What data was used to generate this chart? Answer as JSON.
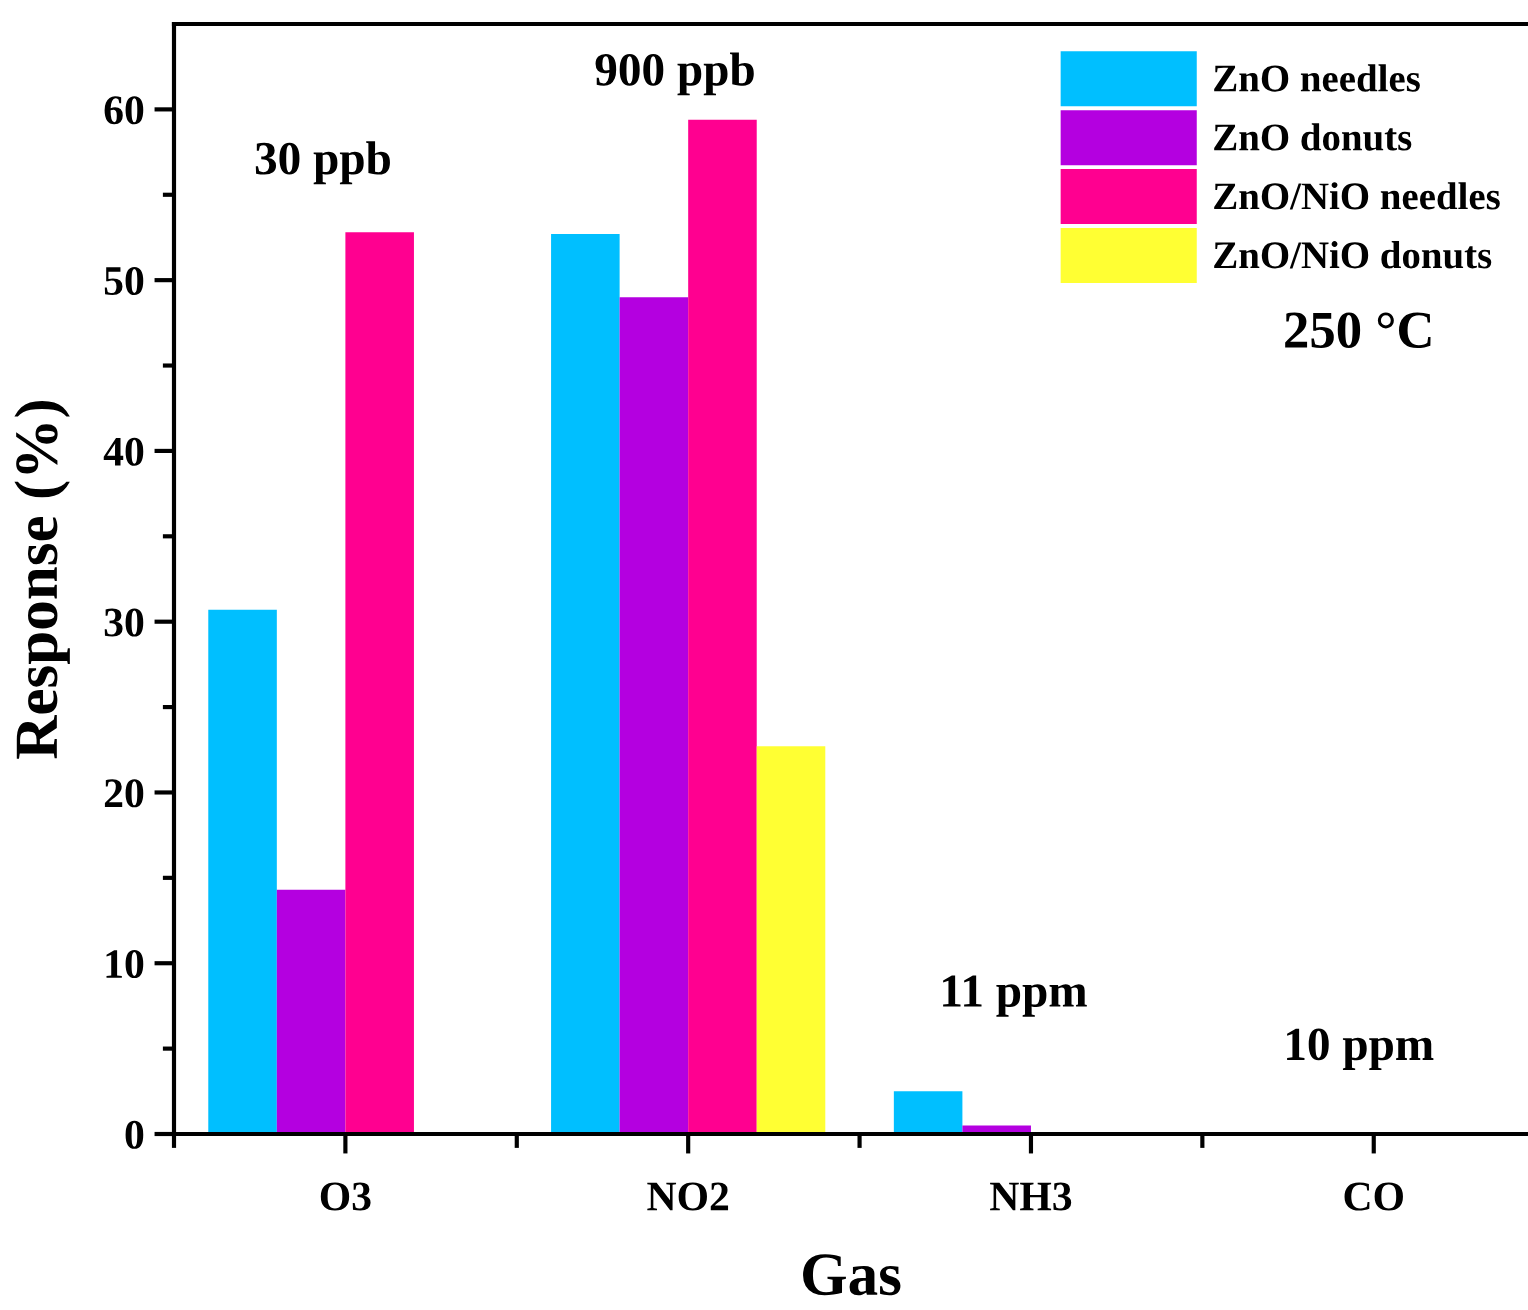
{
  "chart_data": {
    "type": "bar",
    "xlabel": "Gas",
    "ylabel": "Response (%)",
    "categories": [
      "O3",
      "NO2",
      "NH3",
      "CO"
    ],
    "series": [
      {
        "name": "ZnO needles",
        "color": "#00bfff",
        "values": [
          30.7,
          52.7,
          2.5,
          0
        ]
      },
      {
        "name": "ZnO donuts",
        "color": "#b400e0",
        "values": [
          14.3,
          49.0,
          0.5,
          0
        ]
      },
      {
        "name": "ZnO/NiO needles",
        "color": "#ff0090",
        "values": [
          52.8,
          59.4,
          0,
          0
        ]
      },
      {
        "name": "ZnO/NiO donuts",
        "color": "#ffff33",
        "values": [
          0,
          22.7,
          0,
          0
        ]
      }
    ],
    "ylim": [
      0,
      65
    ],
    "yticks": [
      0,
      {
        "value": 5,
        "label": null
      },
      10,
      {
        "value": 15,
        "label": null
      },
      20,
      {
        "value": 25,
        "label": null
      },
      30,
      {
        "value": 35,
        "label": null
      },
      40,
      {
        "value": 45,
        "label": null
      },
      50,
      {
        "value": 55,
        "label": null
      },
      60
    ],
    "annotations": [
      "30 ppb",
      "900 ppb",
      "11 ppm",
      "10 ppm",
      "250 °C"
    ],
    "legend": "top right",
    "grid": false
  }
}
